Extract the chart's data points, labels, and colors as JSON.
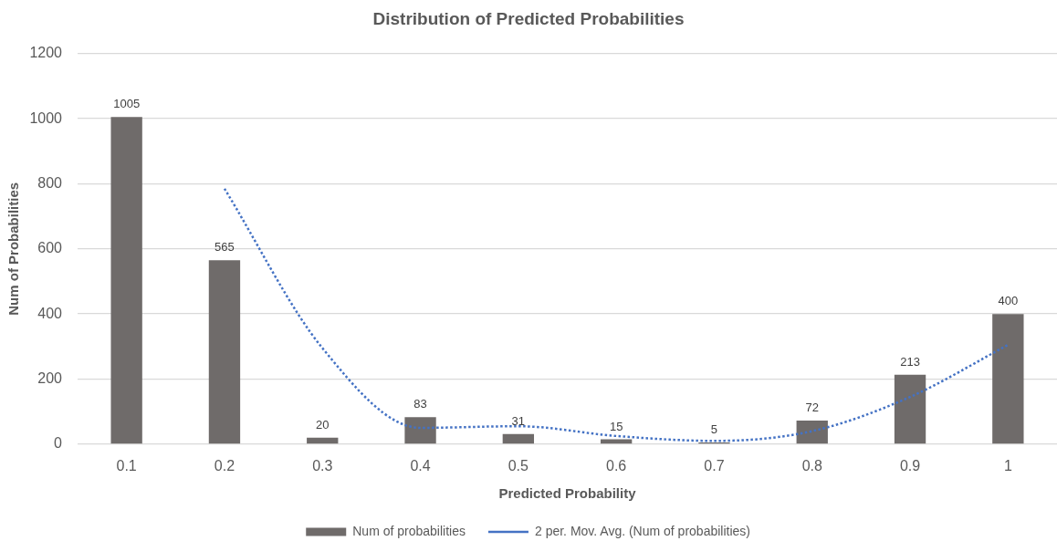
{
  "chart_data": {
    "type": "bar",
    "title": "Distribution of Predicted Probabilities",
    "xlabel": "Predicted Probability",
    "ylabel": "Num of Probabilities",
    "categories": [
      "0.1",
      "0.2",
      "0.3",
      "0.4",
      "0.5",
      "0.6",
      "0.7",
      "0.8",
      "0.9",
      "1"
    ],
    "series": [
      {
        "name": "Num of probabilities",
        "color": "#6f6b6a",
        "values": [
          1005,
          565,
          20,
          83,
          31,
          15,
          5,
          72,
          213,
          400
        ],
        "value_labels": [
          "1005",
          "565",
          "20",
          "83",
          "31",
          "15",
          "5",
          "72",
          "213",
          "400"
        ]
      },
      {
        "name": "2 per. Mov. Avg. (Num of probabilities)",
        "type": "line",
        "color": "#4472c4",
        "line_style": "dotted",
        "marker": "none",
        "values": [
          null,
          785,
          295,
          50,
          55,
          25,
          10,
          40,
          145,
          305
        ]
      }
    ],
    "ylim": [
      0,
      1200
    ],
    "yticks": [
      0,
      200,
      400,
      600,
      800,
      1000,
      1200
    ],
    "grid": "y",
    "legend": "bottom"
  }
}
